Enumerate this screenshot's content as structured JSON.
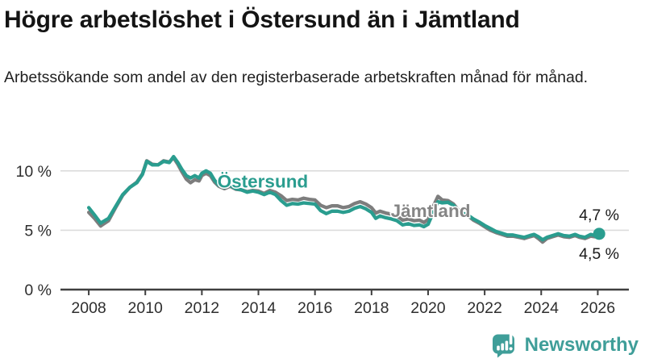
{
  "header": {
    "title": "Högre arbetslöshet i Östersund än i Jämtland",
    "subtitle": "Arbetssökande som andel av den registerbaserade arbetskraften månad för månad."
  },
  "colors": {
    "ostersund": "#2a9d8f",
    "jamtland": "#7d7d7d",
    "jamtland_label": "#858585",
    "brand_teal": "#3f9e99",
    "gridline": "#dcdcdc",
    "axis": "#3f3f3f"
  },
  "chart_data": {
    "type": "line",
    "title": "Högre arbetslöshet i Östersund än i Jämtland",
    "subtitle": "Arbetssökande som andel av den registerbaserade arbetskraften månad för månad.",
    "xlabel": "",
    "ylabel": "",
    "grid": true,
    "legend_position": "inline",
    "xlim": [
      2007.0,
      2027.1
    ],
    "ylim": [
      0,
      12.5
    ],
    "x_ticks": [
      2008,
      2010,
      2012,
      2014,
      2016,
      2018,
      2020,
      2022,
      2024,
      2026
    ],
    "y_ticks": [
      {
        "value": 10,
        "label": "10 %"
      },
      {
        "value": 5,
        "label": "5 %"
      },
      {
        "value": 0,
        "label": "0 %"
      }
    ],
    "series": [
      {
        "name": "Jämtland",
        "color": "#7d7d7d",
        "end_label": "4,5 %",
        "end_label_position": "below",
        "end_dot": false,
        "x": [
          2008.0,
          2008.2,
          2008.42,
          2008.7,
          2008.95,
          2009.2,
          2009.45,
          2009.7,
          2009.9,
          2010.05,
          2010.25,
          2010.45,
          2010.65,
          2010.85,
          2011.0,
          2011.15,
          2011.3,
          2011.45,
          2011.6,
          2011.75,
          2011.9,
          2012.0,
          2012.15,
          2012.3,
          2012.45,
          2012.6,
          2012.8,
          2013.0,
          2013.2,
          2013.4,
          2013.6,
          2013.8,
          2014.0,
          2014.2,
          2014.4,
          2014.6,
          2014.8,
          2015.0,
          2015.2,
          2015.4,
          2015.6,
          2015.8,
          2016.0,
          2016.2,
          2016.4,
          2016.6,
          2016.8,
          2017.0,
          2017.2,
          2017.4,
          2017.6,
          2017.8,
          2018.0,
          2018.15,
          2018.3,
          2018.5,
          2018.7,
          2018.9,
          2019.1,
          2019.3,
          2019.5,
          2019.7,
          2019.85,
          2020.0,
          2020.2,
          2020.35,
          2020.5,
          2020.7,
          2020.9,
          2021.1,
          2021.3,
          2021.45,
          2021.6,
          2021.8,
          2022.0,
          2022.2,
          2022.4,
          2022.6,
          2022.8,
          2023.0,
          2023.2,
          2023.4,
          2023.6,
          2023.75,
          2023.9,
          2024.05,
          2024.2,
          2024.4,
          2024.6,
          2024.8,
          2025.0,
          2025.2,
          2025.35,
          2025.55,
          2025.75,
          2025.9,
          2026.05
        ],
        "values": [
          6.5,
          6.0,
          5.35,
          5.8,
          6.9,
          7.95,
          8.6,
          9.05,
          9.75,
          10.85,
          10.55,
          10.5,
          10.85,
          10.75,
          11.1,
          10.55,
          9.9,
          9.3,
          9.0,
          9.25,
          9.15,
          9.6,
          9.8,
          9.6,
          9.05,
          8.7,
          8.5,
          8.7,
          8.45,
          8.4,
          8.25,
          8.35,
          8.3,
          8.1,
          8.35,
          8.2,
          7.9,
          7.5,
          7.6,
          7.55,
          7.7,
          7.6,
          7.55,
          7.1,
          6.9,
          7.05,
          7.05,
          6.9,
          7.0,
          7.25,
          7.4,
          7.2,
          6.9,
          6.45,
          6.6,
          6.45,
          6.35,
          6.2,
          5.85,
          5.95,
          5.8,
          5.85,
          5.65,
          5.9,
          7.1,
          7.85,
          7.55,
          7.5,
          7.2,
          6.6,
          6.35,
          6.15,
          5.85,
          5.6,
          5.3,
          5.0,
          4.8,
          4.65,
          4.5,
          4.5,
          4.4,
          4.3,
          4.45,
          4.55,
          4.3,
          4.0,
          4.3,
          4.45,
          4.6,
          4.45,
          4.4,
          4.55,
          4.4,
          4.3,
          4.5,
          4.45,
          4.5
        ]
      },
      {
        "name": "Östersund",
        "color": "#2a9d8f",
        "end_label": "4,7 %",
        "end_label_position": "above",
        "end_dot": true,
        "x": [
          2008.0,
          2008.2,
          2008.42,
          2008.7,
          2008.95,
          2009.2,
          2009.45,
          2009.7,
          2009.9,
          2010.05,
          2010.25,
          2010.45,
          2010.65,
          2010.85,
          2011.0,
          2011.15,
          2011.3,
          2011.45,
          2011.6,
          2011.75,
          2011.9,
          2012.0,
          2012.15,
          2012.3,
          2012.45,
          2012.6,
          2012.8,
          2013.0,
          2013.2,
          2013.4,
          2013.6,
          2013.8,
          2014.0,
          2014.2,
          2014.4,
          2014.6,
          2014.8,
          2015.0,
          2015.2,
          2015.4,
          2015.6,
          2015.8,
          2016.0,
          2016.2,
          2016.4,
          2016.6,
          2016.8,
          2017.0,
          2017.2,
          2017.4,
          2017.6,
          2017.8,
          2018.0,
          2018.15,
          2018.3,
          2018.5,
          2018.7,
          2018.9,
          2019.1,
          2019.3,
          2019.5,
          2019.7,
          2019.85,
          2020.0,
          2020.2,
          2020.35,
          2020.5,
          2020.7,
          2020.9,
          2021.1,
          2021.3,
          2021.45,
          2021.6,
          2021.8,
          2022.0,
          2022.2,
          2022.4,
          2022.6,
          2022.8,
          2023.0,
          2023.2,
          2023.4,
          2023.6,
          2023.75,
          2023.9,
          2024.05,
          2024.2,
          2024.4,
          2024.6,
          2024.8,
          2025.0,
          2025.2,
          2025.35,
          2025.55,
          2025.75,
          2025.9,
          2026.05
        ],
        "values": [
          6.9,
          6.3,
          5.6,
          6.0,
          7.0,
          8.0,
          8.6,
          9.0,
          9.7,
          10.8,
          10.5,
          10.5,
          10.8,
          10.7,
          11.2,
          10.7,
          10.1,
          9.6,
          9.4,
          9.6,
          9.4,
          9.8,
          10.0,
          9.8,
          9.2,
          8.8,
          8.6,
          8.8,
          8.5,
          8.4,
          8.2,
          8.3,
          8.2,
          8.0,
          8.2,
          8.0,
          7.5,
          7.1,
          7.25,
          7.2,
          7.3,
          7.25,
          7.2,
          6.65,
          6.4,
          6.6,
          6.6,
          6.5,
          6.6,
          6.85,
          7.0,
          6.8,
          6.5,
          6.0,
          6.2,
          6.05,
          5.95,
          5.8,
          5.45,
          5.55,
          5.4,
          5.45,
          5.3,
          5.5,
          6.6,
          7.4,
          7.3,
          7.35,
          7.1,
          6.55,
          6.35,
          6.2,
          5.95,
          5.7,
          5.4,
          5.15,
          4.9,
          4.75,
          4.6,
          4.6,
          4.5,
          4.4,
          4.55,
          4.65,
          4.45,
          4.2,
          4.4,
          4.55,
          4.7,
          4.55,
          4.5,
          4.65,
          4.5,
          4.4,
          4.65,
          4.55,
          4.7
        ]
      }
    ],
    "annotations": [
      {
        "text": "Östersund",
        "x": 2012.55,
        "y": 8.6,
        "color": "#2a9d8f"
      },
      {
        "text": "Jämtland",
        "x": 2018.68,
        "y": 6.1,
        "color": "#858585"
      }
    ]
  },
  "footer": {
    "brand": "Newsworthy",
    "logo_icon": "bar-chart-speech-bubble"
  }
}
